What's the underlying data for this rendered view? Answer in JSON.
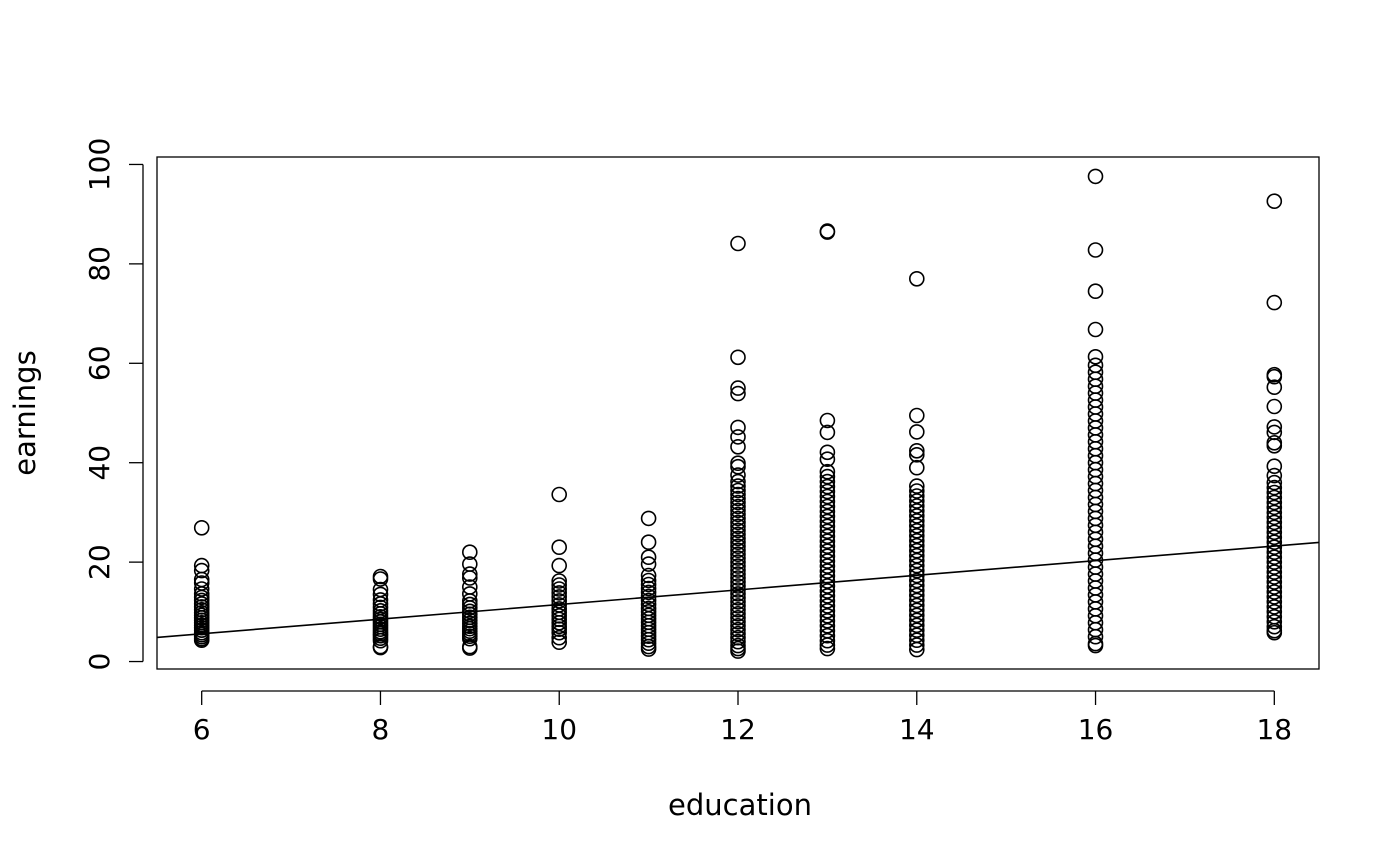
{
  "chart_data": {
    "type": "scatter",
    "title": "",
    "xlabel": "education",
    "ylabel": "earnings",
    "xlim": [
      5.5,
      18.5
    ],
    "ylim": [
      -1.5,
      101.5
    ],
    "x_ticks": [
      6,
      8,
      10,
      12,
      14,
      16,
      18
    ],
    "y_ticks": [
      0,
      20,
      40,
      60,
      80,
      100
    ],
    "grid": false,
    "legend": "none",
    "fit_line": {
      "intercept": -3.23,
      "slope": 1.47
    },
    "groups": [
      {
        "x": 6,
        "y": [
          26.9,
          19.3,
          18.3,
          16.5,
          15.8,
          14.6,
          13.6,
          12.9,
          12.3,
          11.6,
          11.0,
          10.4,
          9.8,
          9.3,
          8.8,
          8.3,
          7.8,
          7.3,
          6.8,
          6.3,
          5.8,
          5.4,
          5.0,
          4.6,
          4.3
        ]
      },
      {
        "x": 8,
        "y": [
          17.1,
          16.6,
          14.5,
          13.5,
          12.4,
          11.6,
          10.9,
          10.2,
          9.6,
          9.0,
          8.5,
          8.0,
          7.5,
          7.0,
          6.5,
          6.0,
          5.6,
          5.2,
          4.7,
          4.2,
          3.0,
          2.8
        ]
      },
      {
        "x": 9,
        "y": [
          22.0,
          19.6,
          17.6,
          16.8,
          15.0,
          13.6,
          12.2,
          11.5,
          10.8,
          10.1,
          9.5,
          8.9,
          8.3,
          7.7,
          7.1,
          6.6,
          6.1,
          5.6,
          5.1,
          4.6,
          3.0,
          2.7
        ]
      },
      {
        "x": 10,
        "y": [
          33.6,
          23.0,
          19.3,
          16.2,
          15.4,
          14.6,
          13.8,
          13.0,
          12.2,
          11.4,
          10.6,
          9.9,
          9.2,
          8.5,
          7.8,
          7.1,
          6.5,
          5.8,
          4.8,
          3.9
        ]
      },
      {
        "x": 11,
        "y": [
          28.8,
          24.0,
          21.0,
          19.6,
          17.3,
          16.3,
          15.5,
          14.7,
          13.9,
          13.1,
          12.3,
          11.5,
          10.7,
          10.0,
          9.3,
          8.6,
          7.9,
          7.2,
          6.5,
          5.8,
          5.1,
          4.4,
          3.7,
          3.0,
          2.5
        ]
      },
      {
        "x": 12,
        "y": [
          84.1,
          61.2,
          55.0,
          53.9,
          47.1,
          45.2,
          43.2,
          39.9,
          39.2,
          37.5,
          36.2,
          35.3,
          34.4,
          33.6,
          32.8,
          32.0,
          31.2,
          30.4,
          29.6,
          28.8,
          28.0,
          27.2,
          26.4,
          25.6,
          24.8,
          24.0,
          23.2,
          22.4,
          21.6,
          20.8,
          20.0,
          19.2,
          18.4,
          17.6,
          16.8,
          16.0,
          15.2,
          14.4,
          13.6,
          12.8,
          12.0,
          11.2,
          10.4,
          9.6,
          8.8,
          8.0,
          7.2,
          6.4,
          5.6,
          4.8,
          4.0,
          3.2,
          2.6,
          2.1
        ]
      },
      {
        "x": 13,
        "y": [
          86.6,
          86.4,
          48.5,
          46.1,
          42.1,
          40.7,
          38.2,
          37.2,
          36.2,
          35.2,
          34.2,
          33.2,
          32.2,
          31.2,
          30.2,
          29.2,
          28.2,
          27.2,
          26.2,
          25.2,
          24.2,
          23.2,
          22.2,
          21.2,
          20.2,
          19.2,
          18.2,
          17.2,
          16.2,
          15.2,
          14.2,
          13.2,
          12.2,
          11.2,
          10.2,
          9.2,
          8.2,
          7.2,
          6.2,
          5.2,
          4.2,
          3.3,
          2.6
        ]
      },
      {
        "x": 14,
        "y": [
          77.0,
          49.5,
          46.2,
          42.4,
          41.6,
          39.0,
          35.3,
          34.3,
          33.3,
          32.3,
          31.3,
          30.3,
          29.3,
          28.3,
          27.3,
          26.3,
          25.3,
          24.3,
          23.3,
          22.3,
          21.3,
          20.3,
          19.3,
          18.3,
          17.3,
          16.3,
          15.3,
          14.3,
          13.3,
          12.3,
          11.3,
          10.3,
          9.3,
          8.3,
          7.3,
          6.3,
          5.3,
          4.3,
          3.3,
          2.4
        ]
      },
      {
        "x": 16,
        "y": [
          97.6,
          82.8,
          74.5,
          66.8,
          61.3,
          59.6,
          58.2,
          56.8,
          55.4,
          54.0,
          52.6,
          51.2,
          49.8,
          48.4,
          47.0,
          45.6,
          44.2,
          42.8,
          41.4,
          40.0,
          38.6,
          37.2,
          35.8,
          34.4,
          33.0,
          31.6,
          30.2,
          28.8,
          27.4,
          26.0,
          24.6,
          23.2,
          21.8,
          20.4,
          19.0,
          17.6,
          16.2,
          14.8,
          13.4,
          12.0,
          10.6,
          9.2,
          7.8,
          6.4,
          5.0,
          3.6,
          3.2
        ]
      },
      {
        "x": 18,
        "y": [
          92.6,
          72.2,
          57.7,
          57.3,
          55.2,
          51.3,
          47.2,
          46.1,
          44.0,
          43.4,
          39.3,
          37.4,
          36.0,
          35.0,
          34.0,
          33.0,
          32.0,
          31.0,
          30.0,
          29.0,
          28.0,
          27.0,
          26.0,
          25.0,
          24.0,
          23.0,
          22.0,
          21.0,
          20.0,
          19.0,
          18.0,
          17.0,
          16.0,
          15.0,
          14.0,
          13.0,
          12.0,
          11.0,
          10.0,
          9.0,
          8.0,
          7.0,
          6.2,
          5.8
        ]
      }
    ]
  }
}
